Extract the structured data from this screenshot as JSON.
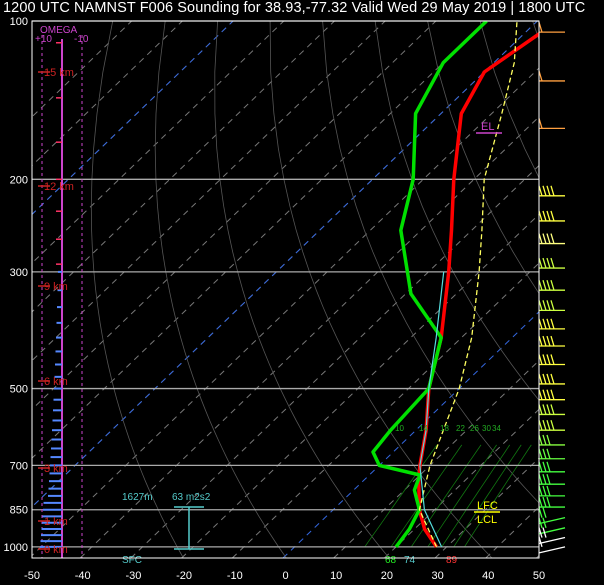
{
  "title": "1200 UTC NAMNST F006 Sounding for 38.93,-77.32 Valid  Wed 29 May 2019 | 1800 UTC",
  "chart_data": {
    "type": "line",
    "pressure_ticks": [
      "100",
      "200",
      "300",
      "500",
      "700",
      "850",
      "1000"
    ],
    "temp_ticks": [
      "-50",
      "-40",
      "-30",
      "-20",
      "-10",
      "0",
      "10",
      "20",
      "30",
      "40",
      "50"
    ],
    "omega_labels": [
      "+10",
      "OMEGA",
      "-10"
    ],
    "height_labels": [
      "15 km",
      "12 km",
      "9 km",
      "6 km",
      "3 km",
      "1 km",
      "0 km"
    ],
    "mixing_ratio_labels": [
      "10",
      "14",
      "18",
      "22",
      "26",
      "30",
      "34"
    ],
    "parcel_levels": [
      "EL",
      "LFC",
      "LCL"
    ],
    "annotations": {
      "height_value": "1627m",
      "helicity_value": "63 m2s2",
      "sfc_label": "SFC",
      "surface_dewpoint": "68",
      "surface_rh": "74",
      "surface_temp": "89"
    },
    "series": [
      {
        "name": "temperature",
        "points": [
          [
            1000,
            28
          ],
          [
            925,
            22
          ],
          [
            850,
            17
          ],
          [
            750,
            11
          ],
          [
            700,
            8
          ],
          [
            600,
            2
          ],
          [
            500,
            -6
          ],
          [
            400,
            -14
          ],
          [
            300,
            -26
          ],
          [
            250,
            -34
          ],
          [
            200,
            -44
          ],
          [
            150,
            -56
          ],
          [
            125,
            -60
          ],
          [
            100,
            -56
          ]
        ]
      },
      {
        "name": "dewpoint",
        "points": [
          [
            1000,
            20
          ],
          [
            925,
            19
          ],
          [
            850,
            17
          ],
          [
            780,
            12
          ],
          [
            730,
            10
          ],
          [
            700,
            0
          ],
          [
            660,
            -4
          ],
          [
            600,
            -5
          ],
          [
            500,
            -6
          ],
          [
            400,
            -14
          ],
          [
            330,
            -29
          ],
          [
            250,
            -44
          ],
          [
            200,
            -52
          ],
          [
            150,
            -65
          ],
          [
            120,
            -70
          ],
          [
            100,
            -70
          ]
        ]
      },
      {
        "name": "parcel",
        "points": [
          [
            1000,
            28
          ],
          [
            850,
            17
          ],
          [
            700,
            10
          ],
          [
            500,
            0
          ],
          [
            400,
            -8
          ],
          [
            300,
            -20
          ],
          [
            250,
            -28
          ],
          [
            200,
            -38
          ],
          [
            150,
            -48
          ],
          [
            120,
            -56
          ],
          [
            100,
            -64
          ]
        ]
      },
      {
        "name": "virtual_temperature",
        "points": [
          [
            1000,
            29
          ],
          [
            850,
            18
          ],
          [
            700,
            8
          ],
          [
            600,
            2
          ],
          [
            500,
            -6
          ],
          [
            400,
            -15
          ],
          [
            300,
            -27
          ]
        ]
      }
    ],
    "colors": {
      "temperature": "#ff0000",
      "dewpoint": "#00e000",
      "parcel": "#ffff60",
      "virtual": "#55dddd",
      "omega": "#cc44cc",
      "heights": "#cc2222",
      "wind_bars": "#5588ff"
    }
  }
}
